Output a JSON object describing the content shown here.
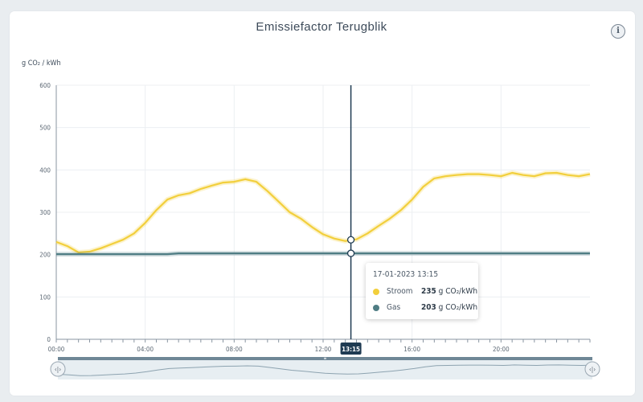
{
  "header": {
    "title": "Emissiefactor Terugblik",
    "info_icon": "i"
  },
  "colors": {
    "stroom": "#f2cf3c",
    "gas": "#4f7d84",
    "cursor": "#1f3b52",
    "grid": "#eceff2"
  },
  "chart_data": {
    "type": "line",
    "ylabel": "g CO₂ / kWh",
    "ylim": [
      0,
      600
    ],
    "yticks": [
      0,
      100,
      200,
      300,
      400,
      500,
      600
    ],
    "xlim": [
      0,
      24
    ],
    "xticks": [
      {
        "value": 0,
        "label": "00:00"
      },
      {
        "value": 4,
        "label": "04:00"
      },
      {
        "value": 8,
        "label": "08:00"
      },
      {
        "value": 12,
        "label": "12:00"
      },
      {
        "value": 16,
        "label": "16:00"
      },
      {
        "value": 20,
        "label": "20:00"
      }
    ],
    "crosshair": {
      "x": 13.25,
      "label": "13:15"
    },
    "series": [
      {
        "name": "Stroom",
        "color": "#f2cf3c",
        "x": [
          0,
          0.5,
          1,
          1.5,
          2,
          2.5,
          3,
          3.5,
          4,
          4.5,
          5,
          5.5,
          6,
          6.5,
          7,
          7.5,
          8,
          8.5,
          9,
          9.5,
          10,
          10.5,
          11,
          11.5,
          12,
          12.5,
          13,
          13.25,
          13.5,
          14,
          14.5,
          15,
          15.5,
          16,
          16.5,
          17,
          17.5,
          18,
          18.5,
          19,
          19.5,
          20,
          20.5,
          21,
          21.5,
          22,
          22.5,
          23,
          23.5,
          24
        ],
        "values": [
          230,
          220,
          205,
          207,
          215,
          225,
          235,
          250,
          275,
          305,
          330,
          340,
          345,
          355,
          363,
          370,
          372,
          378,
          372,
          350,
          325,
          300,
          285,
          265,
          248,
          238,
          232,
          235,
          236,
          250,
          268,
          285,
          305,
          330,
          360,
          380,
          385,
          388,
          390,
          390,
          388,
          385,
          393,
          388,
          385,
          392,
          393,
          388,
          385,
          390
        ]
      },
      {
        "name": "Gas",
        "color": "#4f7d84",
        "x": [
          0,
          5,
          5.5,
          24
        ],
        "values": [
          201,
          201,
          203,
          203
        ]
      }
    ],
    "tooltip": {
      "date": "17-01-2023 13:15",
      "rows": [
        {
          "name": "Stroom",
          "value": "235",
          "unit": "g CO₂/kWh"
        },
        {
          "name": "Gas",
          "value": "203",
          "unit": "g CO₂/kWh"
        }
      ]
    },
    "navigator": {
      "handle_icon": "‹|›",
      "center_icon": "≡"
    }
  }
}
